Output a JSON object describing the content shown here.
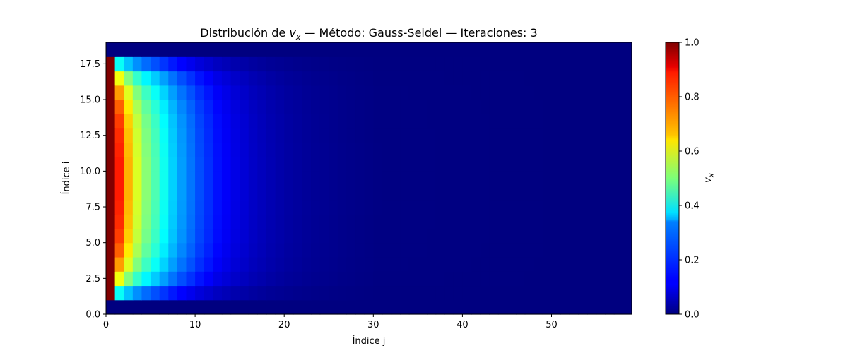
{
  "chart_data": {
    "type": "heatmap",
    "title": "Distribución de vₓ — Método: Gauss-Seidel — Iteraciones: 3",
    "title_parts": {
      "prefix": "Distribución de ",
      "var": "v",
      "sub": "x",
      "suffix": " — Método: Gauss-Seidel — Iteraciones: 3"
    },
    "xlabel": "Índice j",
    "ylabel": "Índice i",
    "xlim": [
      0,
      59
    ],
    "ylim": [
      0,
      19
    ],
    "n_cols": 59,
    "n_rows": 19,
    "xticks": [
      0,
      10,
      20,
      30,
      40,
      50
    ],
    "xtick_labels": [
      "0",
      "10",
      "20",
      "30",
      "40",
      "50"
    ],
    "yticks": [
      0,
      2.5,
      5,
      7.5,
      10,
      12.5,
      15,
      17.5
    ],
    "ytick_labels": [
      "0.0",
      "2.5",
      "5.0",
      "7.5",
      "10.0",
      "12.5",
      "15.0",
      "17.5"
    ],
    "colormap": "jet",
    "colorbar": {
      "label_var": "v",
      "label_sub": "x",
      "vmin": 0,
      "vmax": 1,
      "ticks": [
        0,
        0.2,
        0.4,
        0.6,
        0.8,
        1.0
      ],
      "tick_labels": [
        "0.0",
        "0.2",
        "0.4",
        "0.6",
        "0.8",
        "1.0"
      ]
    },
    "interior_profile": [
      1.0,
      0.85,
      0.7,
      0.59,
      0.51,
      0.45,
      0.39,
      0.33,
      0.28,
      0.24,
      0.2,
      0.17,
      0.14,
      0.12,
      0.1,
      0.085,
      0.07,
      0.06,
      0.05,
      0.042,
      0.035,
      0.03,
      0.025,
      0.021,
      0.018,
      0.015,
      0.012,
      0.01,
      0.008,
      0.006
    ],
    "row_factor": [
      0.0,
      0.45,
      0.72,
      0.85,
      0.92,
      0.96,
      0.98,
      0.99,
      1.0,
      1.0,
      1.0,
      0.99,
      0.98,
      0.96,
      0.92,
      0.85,
      0.72,
      0.45,
      0.0
    ]
  }
}
